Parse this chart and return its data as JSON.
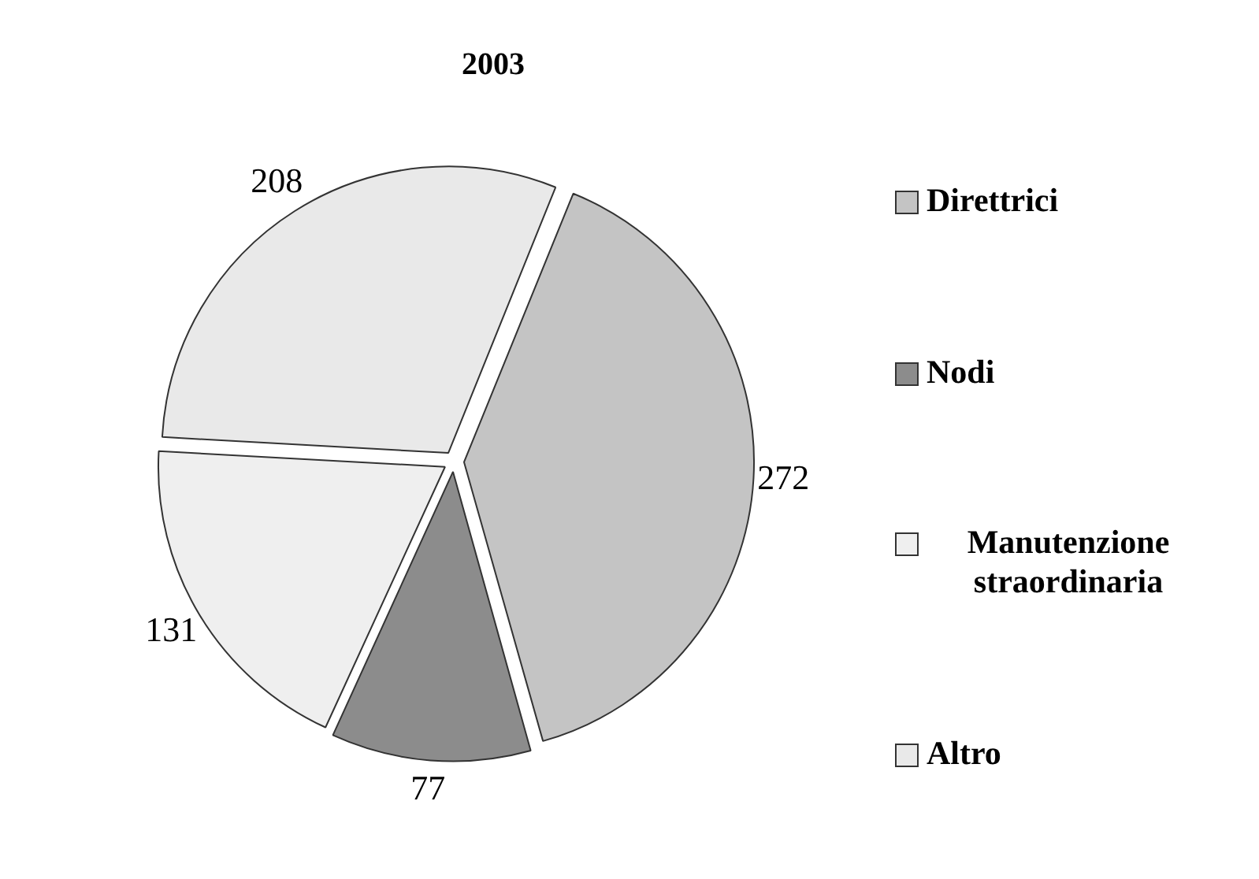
{
  "chart_data": {
    "type": "pie",
    "title": "2003",
    "categories": [
      "Direttrici",
      "Nodi",
      "Manutenzione straordinaria",
      "Altro"
    ],
    "values": [
      272,
      77,
      131,
      208
    ],
    "colors": [
      "#c4c4c4",
      "#8c8c8c",
      "#efefef",
      "#e9e9e9"
    ],
    "data_labels": true,
    "legend": "right"
  }
}
